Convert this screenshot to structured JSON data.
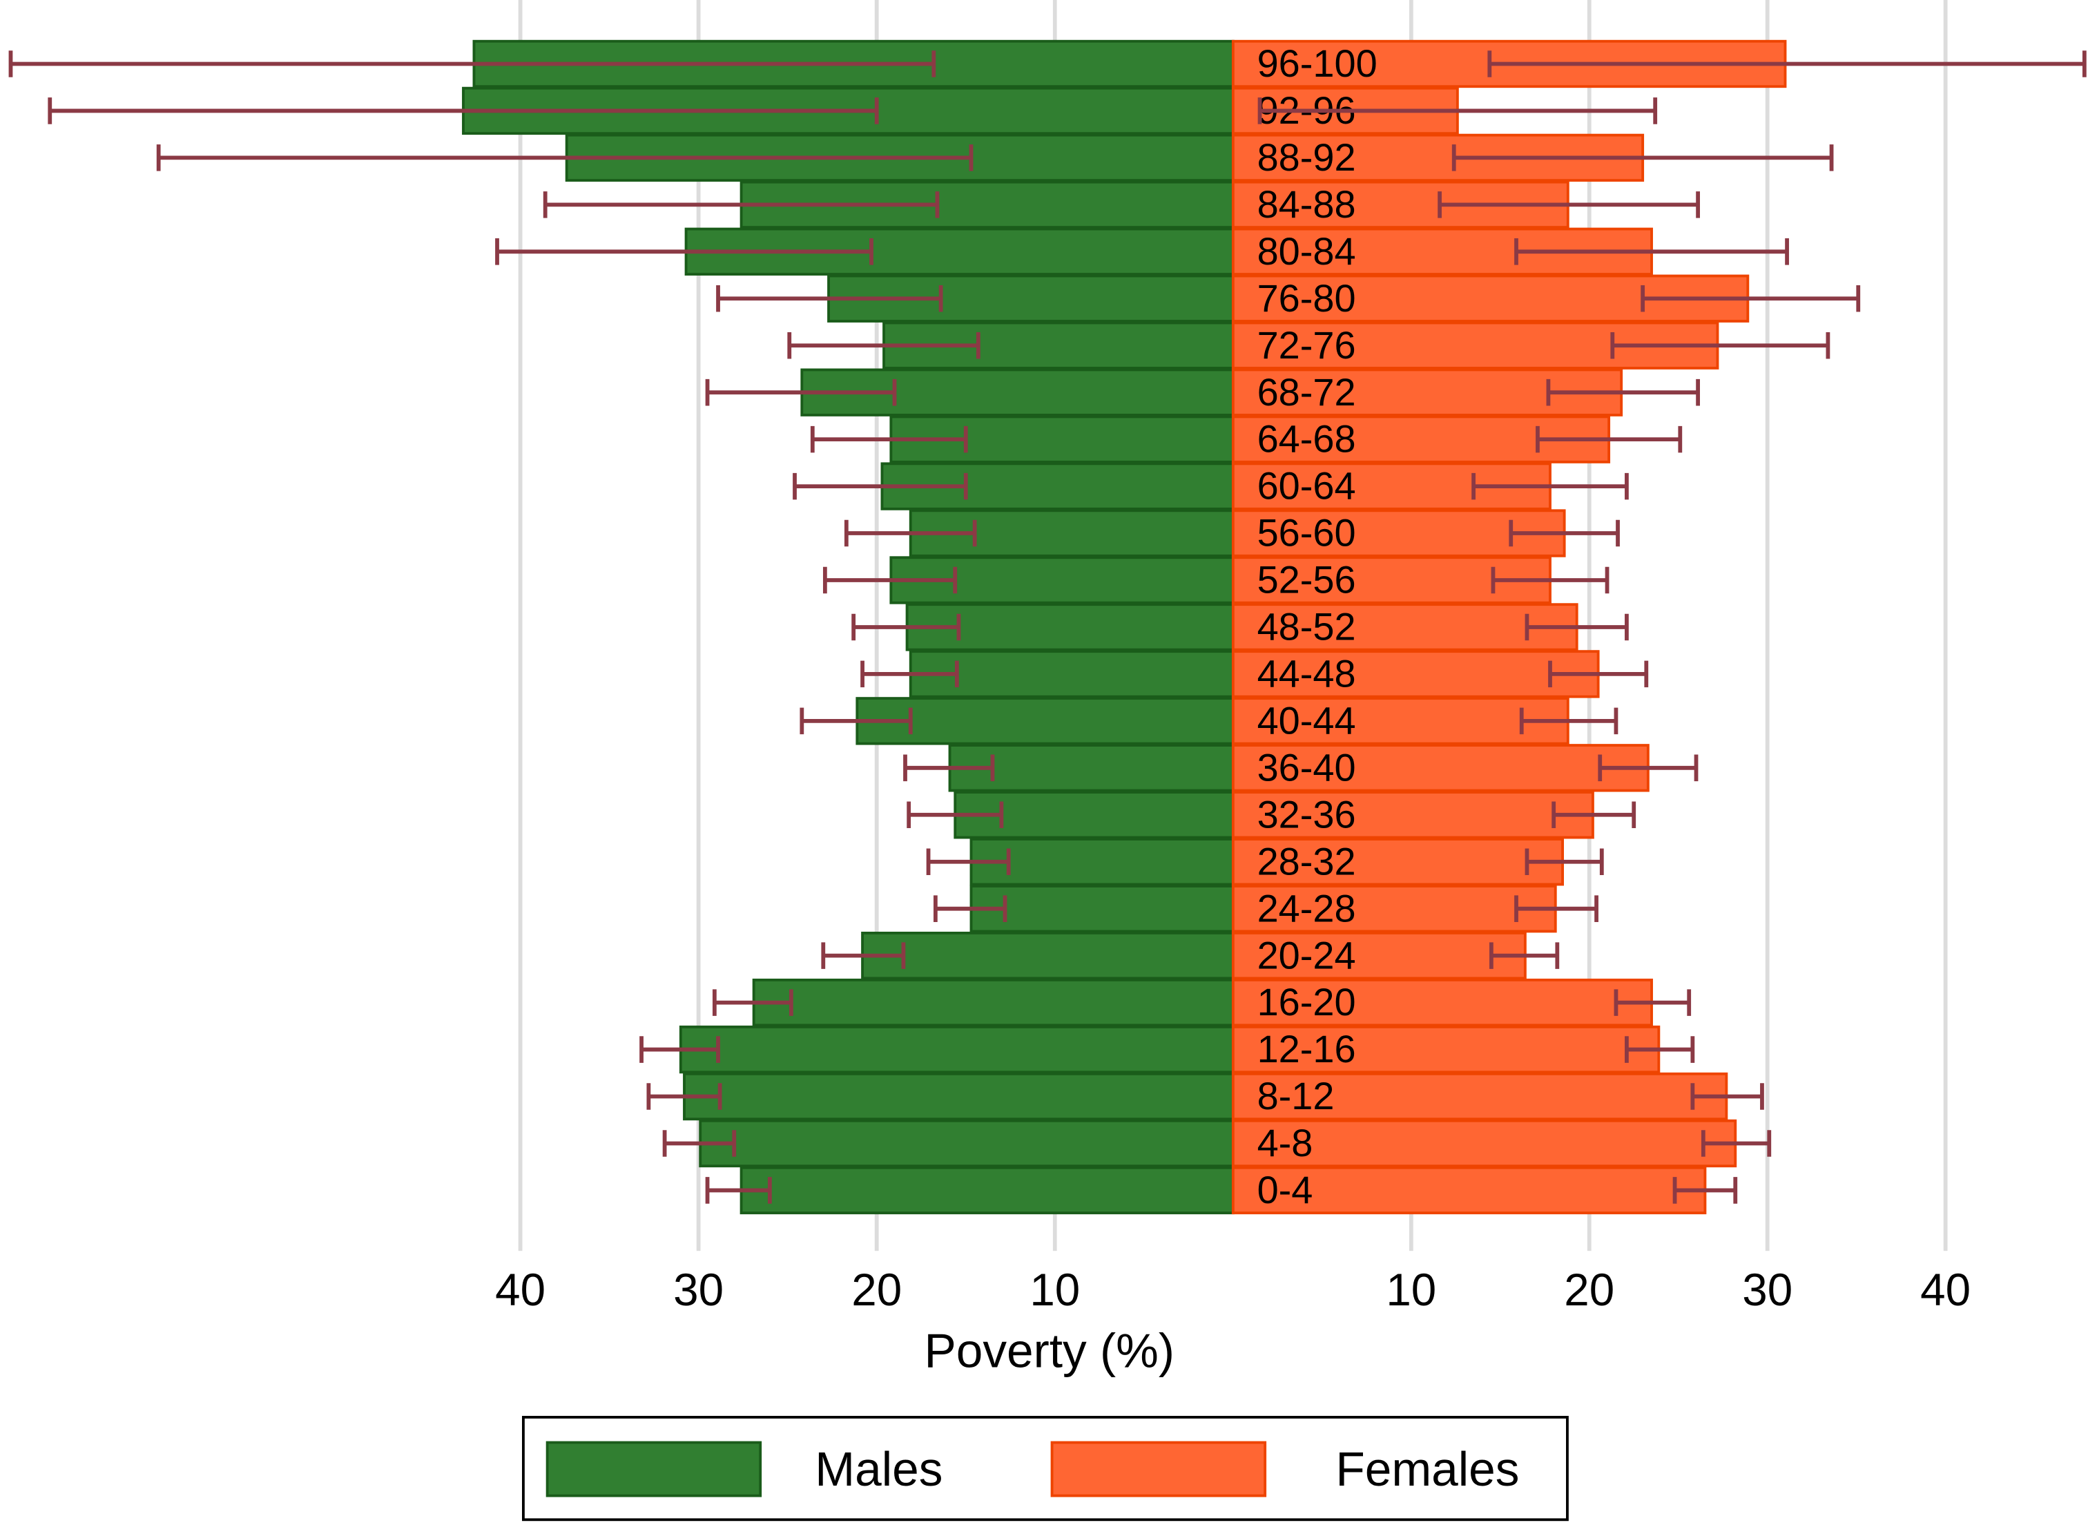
{
  "chart_data": {
    "type": "pyramid",
    "x_title": "Poverty (%)",
    "categories": [
      "0-4",
      "4-8",
      "8-12",
      "12-16",
      "16-20",
      "20-24",
      "24-28",
      "28-32",
      "32-36",
      "36-40",
      "40-44",
      "44-48",
      "48-52",
      "52-56",
      "56-60",
      "60-64",
      "64-68",
      "68-72",
      "72-76",
      "76-80",
      "80-84",
      "84-88",
      "88-92",
      "92-96",
      "96-100"
    ],
    "xlim_left": [
      0,
      69.2
    ],
    "xticks_left": [
      10,
      20,
      30,
      40
    ],
    "xlim_right": [
      0,
      48.0
    ],
    "xticks_right": [
      10,
      20,
      30,
      40
    ],
    "grid": true,
    "error_color": "#8b3a45",
    "series": [
      {
        "name": "Males",
        "side": "left",
        "color": "#317f31",
        "edge": "#1a5c1a",
        "values": [
          27.6,
          29.9,
          30.8,
          31.0,
          26.9,
          20.8,
          14.7,
          14.7,
          15.6,
          15.9,
          21.1,
          18.1,
          18.3,
          19.2,
          18.1,
          19.7,
          19.2,
          24.2,
          19.6,
          22.7,
          30.7,
          27.6,
          37.4,
          43.2,
          42.6
        ],
        "lower": [
          26.0,
          28.0,
          28.8,
          28.9,
          24.8,
          18.5,
          12.8,
          12.6,
          13.0,
          13.5,
          18.1,
          15.5,
          15.4,
          15.6,
          14.5,
          15.0,
          15.0,
          19.0,
          14.3,
          16.4,
          20.3,
          16.6,
          14.7,
          20.0,
          16.8
        ],
        "upper": [
          29.5,
          31.9,
          32.8,
          33.2,
          29.1,
          23.0,
          16.7,
          17.1,
          18.2,
          18.4,
          24.2,
          20.8,
          21.3,
          22.9,
          21.7,
          24.6,
          23.6,
          29.5,
          24.9,
          28.9,
          41.3,
          38.6,
          60.3,
          66.4,
          68.6
        ]
      },
      {
        "name": "Females",
        "side": "right",
        "color": "#ff6633",
        "edge": "#ee4400",
        "values": [
          26.5,
          28.2,
          27.7,
          23.9,
          23.5,
          16.4,
          18.1,
          18.5,
          20.2,
          23.3,
          18.8,
          20.5,
          19.3,
          17.8,
          18.6,
          17.8,
          21.1,
          21.8,
          27.2,
          28.9,
          23.5,
          18.8,
          23.0,
          12.6,
          31.0
        ],
        "lower": [
          24.8,
          26.4,
          25.8,
          22.1,
          21.5,
          14.5,
          15.9,
          16.5,
          18.0,
          20.6,
          16.2,
          17.8,
          16.5,
          14.6,
          15.6,
          13.5,
          17.1,
          17.7,
          21.3,
          23.0,
          15.9,
          11.6,
          12.4,
          1.5,
          14.4
        ],
        "upper": [
          28.2,
          30.1,
          29.7,
          25.8,
          25.6,
          18.2,
          20.4,
          20.7,
          22.5,
          26.0,
          21.5,
          23.2,
          22.1,
          21.0,
          21.6,
          22.1,
          25.1,
          26.1,
          33.4,
          35.1,
          31.1,
          26.1,
          33.6,
          23.7,
          47.8
        ]
      }
    ]
  }
}
